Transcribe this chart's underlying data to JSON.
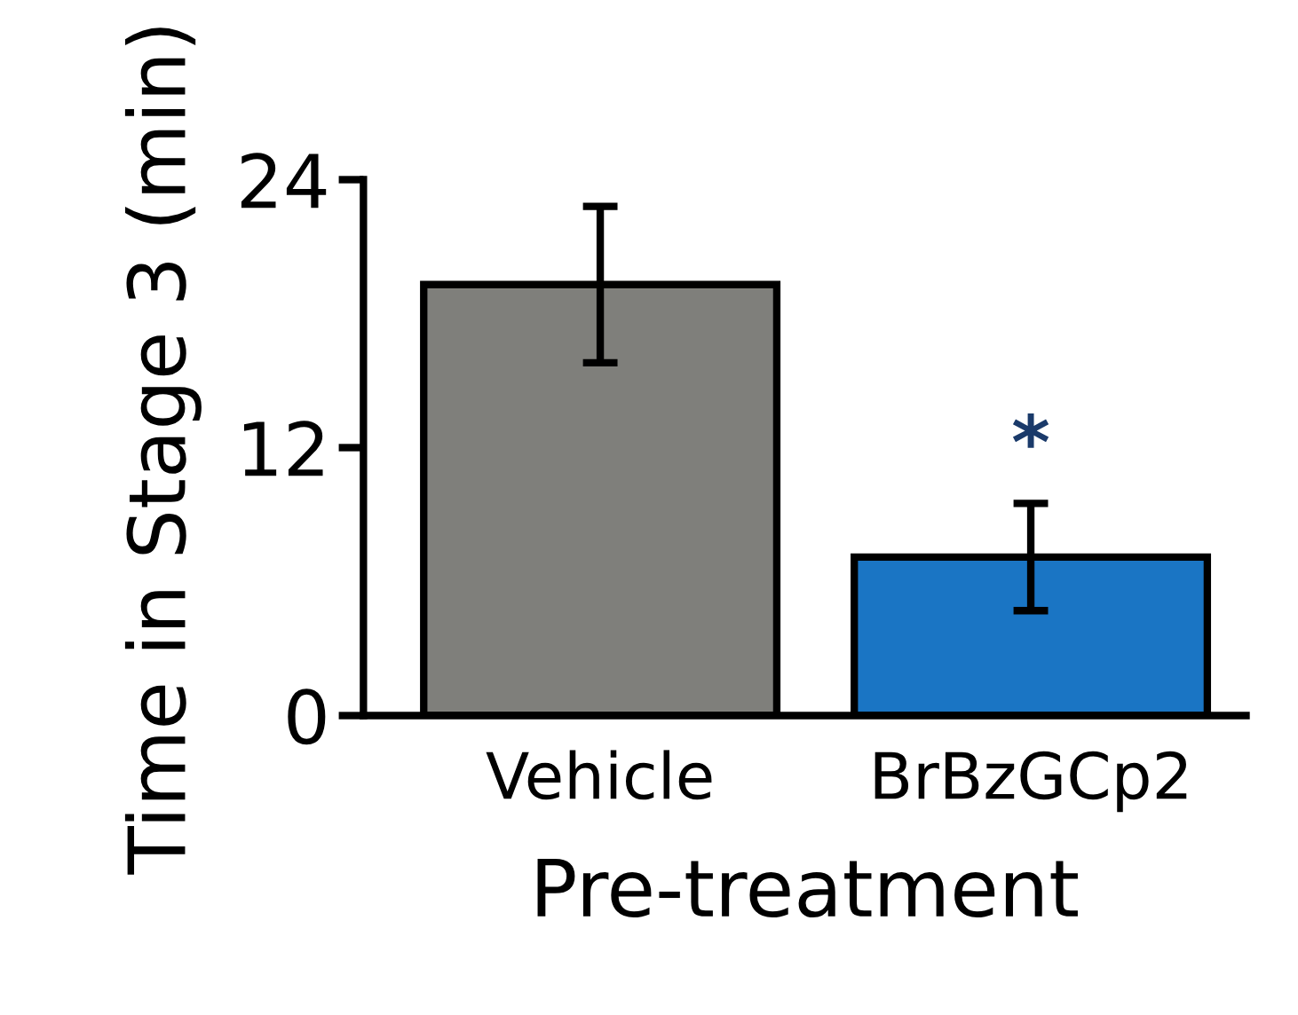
{
  "chart_data": {
    "type": "bar",
    "xlabel": "Pre-treatment",
    "ylabel": "Time in Stage 3 (min)",
    "categories": [
      "Vehicle",
      "BrBzGCp2"
    ],
    "values": [
      19.3,
      7.1
    ],
    "colors": [
      "#7f7f7b",
      "#1a75c4"
    ],
    "errors": [
      3.5,
      2.4
    ],
    "ylim": [
      0,
      24
    ],
    "yticks": [
      0,
      12,
      24
    ],
    "grid": false,
    "legend": false,
    "annotations": [
      "*"
    ]
  }
}
